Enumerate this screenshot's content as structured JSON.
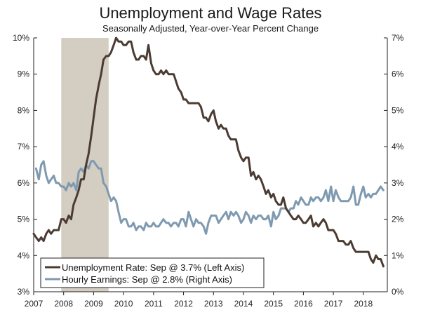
{
  "chart_data": {
    "type": "line",
    "title": "Unemployment and Wage Rates",
    "subtitle": "Seasonally Adjusted, Year-over-Year Percent Change",
    "x_ticks": [
      "2007",
      "2008",
      "2009",
      "2010",
      "2011",
      "2012",
      "2013",
      "2014",
      "2015",
      "2016",
      "2017",
      "2018"
    ],
    "y_left": {
      "min": 3,
      "max": 10,
      "ticks": [
        "3%",
        "4%",
        "5%",
        "6%",
        "7%",
        "8%",
        "9%",
        "10%"
      ]
    },
    "y_right": {
      "min": 0,
      "max": 7,
      "ticks": [
        "0%",
        "1%",
        "2%",
        "3%",
        "4%",
        "5%",
        "6%",
        "7%"
      ]
    },
    "recession": {
      "start": 2007.92,
      "end": 2009.5
    },
    "grid": false,
    "legend_position": "bottom-left",
    "colors": {
      "unemployment": "#4b3b33",
      "earnings": "#7f9ab0",
      "recession": "#d4cdc1"
    },
    "series": [
      {
        "name": "Unemployment Rate: Sep @ 3.7% (Left Axis)",
        "axis": "left",
        "points": [
          [
            2007.0,
            4.6
          ],
          [
            2007.08,
            4.5
          ],
          [
            2007.17,
            4.4
          ],
          [
            2007.25,
            4.5
          ],
          [
            2007.33,
            4.4
          ],
          [
            2007.42,
            4.6
          ],
          [
            2007.5,
            4.7
          ],
          [
            2007.58,
            4.6
          ],
          [
            2007.67,
            4.7
          ],
          [
            2007.75,
            4.7
          ],
          [
            2007.83,
            4.7
          ],
          [
            2007.92,
            5.0
          ],
          [
            2008.0,
            5.0
          ],
          [
            2008.08,
            4.9
          ],
          [
            2008.17,
            5.1
          ],
          [
            2008.25,
            5.0
          ],
          [
            2008.33,
            5.4
          ],
          [
            2008.42,
            5.6
          ],
          [
            2008.5,
            5.8
          ],
          [
            2008.58,
            6.1
          ],
          [
            2008.67,
            6.1
          ],
          [
            2008.75,
            6.5
          ],
          [
            2008.83,
            6.8
          ],
          [
            2008.92,
            7.3
          ],
          [
            2009.0,
            7.8
          ],
          [
            2009.08,
            8.3
          ],
          [
            2009.17,
            8.7
          ],
          [
            2009.25,
            9.0
          ],
          [
            2009.33,
            9.4
          ],
          [
            2009.42,
            9.5
          ],
          [
            2009.5,
            9.5
          ],
          [
            2009.58,
            9.6
          ],
          [
            2009.67,
            9.8
          ],
          [
            2009.75,
            10.0
          ],
          [
            2009.83,
            9.9
          ],
          [
            2009.92,
            9.9
          ],
          [
            2010.0,
            9.8
          ],
          [
            2010.08,
            9.8
          ],
          [
            2010.17,
            9.9
          ],
          [
            2010.25,
            9.9
          ],
          [
            2010.33,
            9.6
          ],
          [
            2010.42,
            9.4
          ],
          [
            2010.5,
            9.4
          ],
          [
            2010.58,
            9.5
          ],
          [
            2010.67,
            9.5
          ],
          [
            2010.75,
            9.4
          ],
          [
            2010.83,
            9.8
          ],
          [
            2010.92,
            9.3
          ],
          [
            2011.0,
            9.1
          ],
          [
            2011.08,
            9.0
          ],
          [
            2011.17,
            9.0
          ],
          [
            2011.25,
            9.1
          ],
          [
            2011.33,
            9.0
          ],
          [
            2011.42,
            9.1
          ],
          [
            2011.5,
            9.0
          ],
          [
            2011.58,
            9.0
          ],
          [
            2011.67,
            9.0
          ],
          [
            2011.75,
            8.8
          ],
          [
            2011.83,
            8.6
          ],
          [
            2011.92,
            8.5
          ],
          [
            2012.0,
            8.3
          ],
          [
            2012.08,
            8.3
          ],
          [
            2012.17,
            8.2
          ],
          [
            2012.25,
            8.2
          ],
          [
            2012.33,
            8.2
          ],
          [
            2012.42,
            8.2
          ],
          [
            2012.5,
            8.2
          ],
          [
            2012.58,
            8.1
          ],
          [
            2012.67,
            7.8
          ],
          [
            2012.75,
            7.8
          ],
          [
            2012.83,
            7.7
          ],
          [
            2012.92,
            7.9
          ],
          [
            2013.0,
            8.0
          ],
          [
            2013.08,
            7.7
          ],
          [
            2013.17,
            7.5
          ],
          [
            2013.25,
            7.6
          ],
          [
            2013.33,
            7.5
          ],
          [
            2013.42,
            7.5
          ],
          [
            2013.5,
            7.3
          ],
          [
            2013.58,
            7.2
          ],
          [
            2013.67,
            7.2
          ],
          [
            2013.75,
            7.2
          ],
          [
            2013.83,
            6.9
          ],
          [
            2013.92,
            6.7
          ],
          [
            2014.0,
            6.6
          ],
          [
            2014.08,
            6.7
          ],
          [
            2014.17,
            6.7
          ],
          [
            2014.25,
            6.2
          ],
          [
            2014.33,
            6.3
          ],
          [
            2014.42,
            6.1
          ],
          [
            2014.5,
            6.2
          ],
          [
            2014.58,
            6.1
          ],
          [
            2014.67,
            5.9
          ],
          [
            2014.75,
            5.7
          ],
          [
            2014.83,
            5.8
          ],
          [
            2014.92,
            5.6
          ],
          [
            2015.0,
            5.7
          ],
          [
            2015.08,
            5.5
          ],
          [
            2015.17,
            5.4
          ],
          [
            2015.25,
            5.4
          ],
          [
            2015.33,
            5.6
          ],
          [
            2015.42,
            5.3
          ],
          [
            2015.5,
            5.2
          ],
          [
            2015.58,
            5.1
          ],
          [
            2015.67,
            5.0
          ],
          [
            2015.75,
            5.0
          ],
          [
            2015.83,
            5.1
          ],
          [
            2015.92,
            5.0
          ],
          [
            2016.0,
            4.9
          ],
          [
            2016.08,
            4.9
          ],
          [
            2016.17,
            5.0
          ],
          [
            2016.25,
            5.1
          ],
          [
            2016.33,
            4.8
          ],
          [
            2016.42,
            4.9
          ],
          [
            2016.5,
            4.8
          ],
          [
            2016.58,
            4.9
          ],
          [
            2016.67,
            5.0
          ],
          [
            2016.75,
            4.9
          ],
          [
            2016.83,
            4.7
          ],
          [
            2016.92,
            4.7
          ],
          [
            2017.0,
            4.7
          ],
          [
            2017.08,
            4.6
          ],
          [
            2017.17,
            4.4
          ],
          [
            2017.25,
            4.4
          ],
          [
            2017.33,
            4.4
          ],
          [
            2017.42,
            4.3
          ],
          [
            2017.5,
            4.3
          ],
          [
            2017.58,
            4.4
          ],
          [
            2017.67,
            4.2
          ],
          [
            2017.75,
            4.1
          ],
          [
            2017.83,
            4.1
          ],
          [
            2017.92,
            4.1
          ],
          [
            2018.0,
            4.1
          ],
          [
            2018.08,
            4.1
          ],
          [
            2018.17,
            4.1
          ],
          [
            2018.25,
            3.9
          ],
          [
            2018.33,
            3.8
          ],
          [
            2018.42,
            4.0
          ],
          [
            2018.5,
            3.9
          ],
          [
            2018.58,
            3.9
          ],
          [
            2018.67,
            3.7
          ]
        ]
      },
      {
        "name": "Hourly Earnings: Sep @ 2.8% (Right Axis)",
        "axis": "right",
        "points": [
          [
            2007.08,
            3.4
          ],
          [
            2007.17,
            3.1
          ],
          [
            2007.25,
            3.5
          ],
          [
            2007.33,
            3.6
          ],
          [
            2007.42,
            3.2
          ],
          [
            2007.5,
            3.0
          ],
          [
            2007.58,
            3.1
          ],
          [
            2007.67,
            3.2
          ],
          [
            2007.75,
            3.0
          ],
          [
            2007.83,
            3.0
          ],
          [
            2007.92,
            2.9
          ],
          [
            2008.0,
            2.9
          ],
          [
            2008.08,
            2.8
          ],
          [
            2008.17,
            3.0
          ],
          [
            2008.25,
            2.9
          ],
          [
            2008.33,
            3.0
          ],
          [
            2008.42,
            2.8
          ],
          [
            2008.5,
            3.3
          ],
          [
            2008.58,
            3.4
          ],
          [
            2008.67,
            3.3
          ],
          [
            2008.75,
            3.5
          ],
          [
            2008.83,
            3.4
          ],
          [
            2008.92,
            3.6
          ],
          [
            2009.0,
            3.6
          ],
          [
            2009.08,
            3.5
          ],
          [
            2009.17,
            3.4
          ],
          [
            2009.25,
            3.4
          ],
          [
            2009.33,
            3.0
          ],
          [
            2009.42,
            2.9
          ],
          [
            2009.5,
            2.7
          ],
          [
            2009.58,
            2.5
          ],
          [
            2009.67,
            2.6
          ],
          [
            2009.75,
            2.5
          ],
          [
            2009.83,
            2.2
          ],
          [
            2009.92,
            1.9
          ],
          [
            2010.0,
            2.0
          ],
          [
            2010.08,
            2.0
          ],
          [
            2010.17,
            1.8
          ],
          [
            2010.25,
            1.8
          ],
          [
            2010.33,
            1.9
          ],
          [
            2010.42,
            1.7
          ],
          [
            2010.5,
            1.8
          ],
          [
            2010.58,
            1.8
          ],
          [
            2010.67,
            1.7
          ],
          [
            2010.75,
            1.9
          ],
          [
            2010.83,
            1.8
          ],
          [
            2010.92,
            1.8
          ],
          [
            2011.0,
            1.9
          ],
          [
            2011.08,
            1.8
          ],
          [
            2011.17,
            1.8
          ],
          [
            2011.25,
            1.9
          ],
          [
            2011.33,
            2.0
          ],
          [
            2011.42,
            1.9
          ],
          [
            2011.5,
            1.9
          ],
          [
            2011.58,
            1.8
          ],
          [
            2011.67,
            1.9
          ],
          [
            2011.75,
            1.9
          ],
          [
            2011.83,
            1.8
          ],
          [
            2011.92,
            2.0
          ],
          [
            2012.0,
            2.0
          ],
          [
            2012.08,
            1.8
          ],
          [
            2012.17,
            2.2
          ],
          [
            2012.25,
            2.0
          ],
          [
            2012.33,
            1.8
          ],
          [
            2012.42,
            2.0
          ],
          [
            2012.5,
            1.9
          ],
          [
            2012.58,
            1.9
          ],
          [
            2012.67,
            1.8
          ],
          [
            2012.75,
            1.6
          ],
          [
            2012.83,
            1.9
          ],
          [
            2012.92,
            2.1
          ],
          [
            2013.0,
            2.1
          ],
          [
            2013.08,
            2.1
          ],
          [
            2013.17,
            1.9
          ],
          [
            2013.25,
            2.0
          ],
          [
            2013.33,
            2.1
          ],
          [
            2013.42,
            2.2
          ],
          [
            2013.5,
            2.0
          ],
          [
            2013.58,
            2.2
          ],
          [
            2013.67,
            2.1
          ],
          [
            2013.75,
            2.2
          ],
          [
            2013.83,
            2.1
          ],
          [
            2013.92,
            1.9
          ],
          [
            2014.0,
            2.0
          ],
          [
            2014.08,
            2.2
          ],
          [
            2014.17,
            2.1
          ],
          [
            2014.25,
            1.9
          ],
          [
            2014.33,
            2.1
          ],
          [
            2014.42,
            2.0
          ],
          [
            2014.5,
            2.1
          ],
          [
            2014.58,
            2.1
          ],
          [
            2014.67,
            2.0
          ],
          [
            2014.75,
            2.0
          ],
          [
            2014.83,
            2.1
          ],
          [
            2014.92,
            1.8
          ],
          [
            2015.0,
            2.2
          ],
          [
            2015.08,
            2.0
          ],
          [
            2015.17,
            2.1
          ],
          [
            2015.25,
            2.3
          ],
          [
            2015.33,
            2.3
          ],
          [
            2015.42,
            2.3
          ],
          [
            2015.5,
            2.2
          ],
          [
            2015.58,
            2.3
          ],
          [
            2015.67,
            2.3
          ],
          [
            2015.75,
            2.5
          ],
          [
            2015.83,
            2.4
          ],
          [
            2015.92,
            2.6
          ],
          [
            2016.0,
            2.5
          ],
          [
            2016.08,
            2.4
          ],
          [
            2016.17,
            2.4
          ],
          [
            2016.25,
            2.6
          ],
          [
            2016.33,
            2.5
          ],
          [
            2016.42,
            2.6
          ],
          [
            2016.5,
            2.6
          ],
          [
            2016.58,
            2.5
          ],
          [
            2016.67,
            2.6
          ],
          [
            2016.75,
            2.8
          ],
          [
            2016.83,
            2.5
          ],
          [
            2016.92,
            2.9
          ],
          [
            2017.0,
            2.5
          ],
          [
            2017.08,
            2.8
          ],
          [
            2017.17,
            2.6
          ],
          [
            2017.25,
            2.5
          ],
          [
            2017.33,
            2.5
          ],
          [
            2017.42,
            2.5
          ],
          [
            2017.5,
            2.5
          ],
          [
            2017.58,
            2.6
          ],
          [
            2017.67,
            2.9
          ],
          [
            2017.75,
            2.4
          ],
          [
            2017.83,
            2.4
          ],
          [
            2017.92,
            2.7
          ],
          [
            2018.0,
            2.9
          ],
          [
            2018.08,
            2.6
          ],
          [
            2018.17,
            2.7
          ],
          [
            2018.25,
            2.6
          ],
          [
            2018.33,
            2.7
          ],
          [
            2018.42,
            2.7
          ],
          [
            2018.5,
            2.8
          ],
          [
            2018.58,
            2.9
          ],
          [
            2018.67,
            2.8
          ]
        ]
      }
    ]
  }
}
